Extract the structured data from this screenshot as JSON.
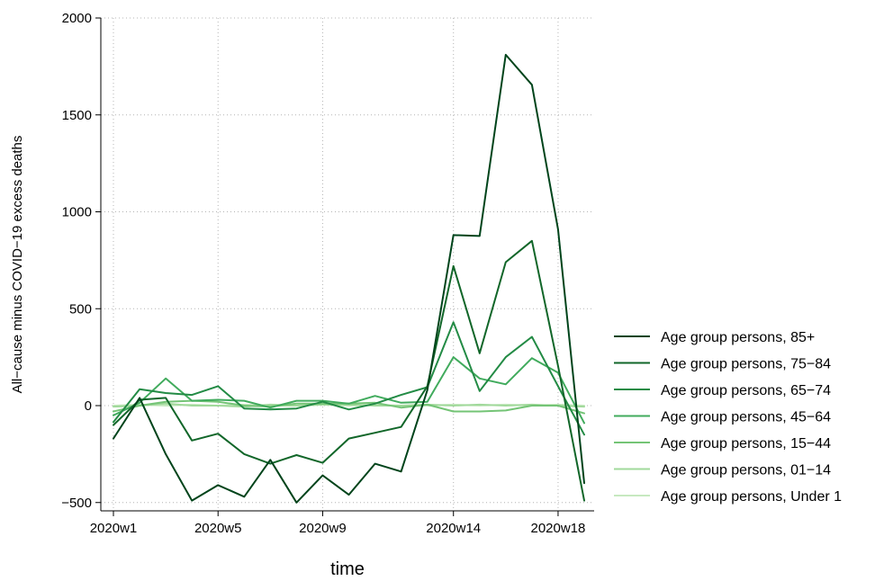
{
  "chart_data": {
    "type": "line",
    "title": "",
    "xlabel": "time",
    "ylabel": "All−cause minus COVID−19 excess deaths",
    "ylim": [
      -550,
      2000
    ],
    "yticks": [
      -500,
      0,
      500,
      1000,
      1500,
      2000
    ],
    "ytick_labels": [
      "−500",
      "0",
      "500",
      "1000",
      "1500",
      "2000"
    ],
    "x": [
      1,
      2,
      3,
      4,
      5,
      6,
      7,
      8,
      9,
      10,
      11,
      12,
      13,
      14,
      15,
      16,
      17,
      18,
      19
    ],
    "xticks": [
      1,
      5,
      9,
      14,
      18
    ],
    "xtick_labels": [
      "2020w1",
      "2020w5",
      "2020w9",
      "2020w14",
      "2020w18"
    ],
    "grid": true,
    "legend_position": "right",
    "series": [
      {
        "name": "Age group persons, 85+",
        "color": "#00441b",
        "values": [
          -170,
          40,
          -250,
          -490,
          -410,
          -470,
          -280,
          -500,
          -360,
          -460,
          -300,
          -340,
          80,
          880,
          875,
          1810,
          1655,
          910,
          -400
        ]
      },
      {
        "name": "Age group persons, 75−84",
        "color": "#116629",
        "values": [
          -100,
          30,
          40,
          -180,
          -145,
          -250,
          -300,
          -255,
          -295,
          -170,
          -140,
          -110,
          100,
          720,
          270,
          740,
          850,
          205,
          -490
        ]
      },
      {
        "name": "Age group persons, 65−74",
        "color": "#238b45",
        "values": [
          -85,
          85,
          65,
          55,
          100,
          -15,
          -20,
          -15,
          20,
          -20,
          10,
          55,
          95,
          430,
          75,
          250,
          355,
          100,
          -150
        ]
      },
      {
        "name": "Age group persons, 45−64",
        "color": "#41ab5d",
        "values": [
          -50,
          15,
          140,
          25,
          30,
          25,
          -10,
          25,
          25,
          10,
          50,
          15,
          20,
          250,
          140,
          110,
          245,
          170,
          -90
        ]
      },
      {
        "name": "Age group persons, 15−44",
        "color": "#74c476",
        "values": [
          -30,
          0,
          20,
          25,
          20,
          0,
          -5,
          10,
          10,
          10,
          15,
          -10,
          5,
          -30,
          -30,
          -25,
          0,
          0,
          -40
        ]
      },
      {
        "name": "Age group persons, 01−14",
        "color": "#a1d99b",
        "values": [
          -5,
          0,
          10,
          0,
          0,
          -5,
          5,
          0,
          5,
          5,
          0,
          0,
          5,
          0,
          5,
          0,
          5,
          0,
          -5
        ]
      },
      {
        "name": "Age group persons, Under 1",
        "color": "#c7e9c0",
        "values": [
          0,
          5,
          0,
          5,
          0,
          5,
          0,
          0,
          5,
          0,
          5,
          0,
          0,
          5,
          0,
          5,
          0,
          5,
          0
        ]
      }
    ]
  }
}
